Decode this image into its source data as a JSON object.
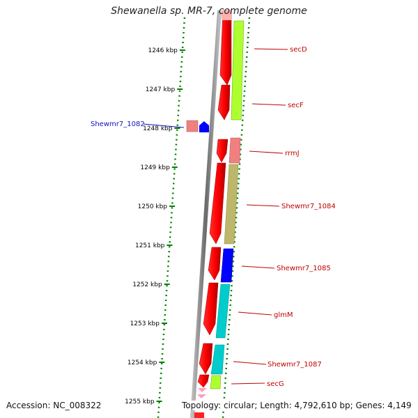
{
  "title": "Shewanella sp. MR-7, complete genome",
  "accession": "Accession: NC_008322",
  "summary": "Topology: circular; Length: 4,792,610 bp; Genes: 4,149",
  "ticks": [
    "1246 kbp",
    "1247 kbp",
    "1248 kbp",
    "1249 kbp",
    "1250 kbp",
    "1251 kbp",
    "1252 kbp",
    "1253 kbp",
    "1254 kbp",
    "1255 kbp"
  ],
  "gene_labels": {
    "secD": "secD",
    "secF": "secF",
    "rrmJ": "rrmJ",
    "shewmr7_1084": "Shewmr7_1084",
    "shewmr7_1085": "Shewmr7_1085",
    "glmM": "glmM",
    "shewmr7_1087": "Shewmr7_1087",
    "secG": "secG",
    "shewmr7_1082": "Shewmr7_1082"
  },
  "colors": {
    "strand_track": "#ff0000",
    "backbone": "#808080",
    "dots": "#008000",
    "label_red": "#c00000",
    "label_blue": "#1010c0",
    "secD": "#adff2f",
    "rrmJ": "#f08080",
    "shewmr7_1084": "#bdb76b",
    "shewmr7_1085": "#0000ff",
    "glmM": "#00cccc",
    "shewmr7_1087": "#00cccc",
    "secG": "#adff2f",
    "shewmr7_1082": "#0000ff"
  }
}
